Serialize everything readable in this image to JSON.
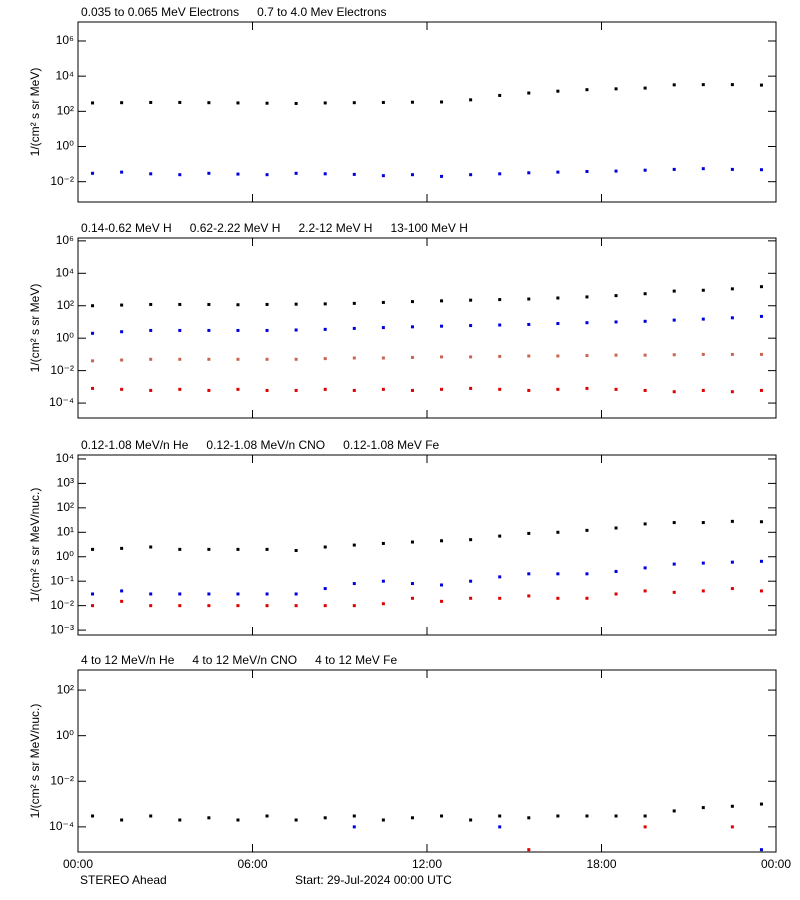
{
  "chart_data": [
    {
      "type": "scatter",
      "ylabel": "1/(cm² s sr MeV)",
      "log": true,
      "xlim": [
        0,
        24
      ],
      "xticks": [
        0,
        6,
        12,
        18,
        24
      ],
      "ylim": [
        0.0007,
        12000000
      ],
      "yticks": [
        {
          "value": 0.01,
          "label": "10⁻²"
        },
        {
          "value": 1,
          "label": "10⁰"
        },
        {
          "value": 100,
          "label": "10²"
        },
        {
          "value": 10000,
          "label": "10⁴"
        },
        {
          "value": 1000000,
          "label": "10⁶"
        }
      ],
      "x": [
        0.5,
        1.5,
        2.5,
        3.5,
        4.5,
        5.5,
        6.5,
        7.5,
        8.5,
        9.5,
        10.5,
        11.5,
        12.5,
        13.5,
        14.5,
        15.5,
        16.5,
        17.5,
        18.5,
        19.5,
        20.5,
        21.5,
        22.5,
        23.5
      ],
      "series": [
        {
          "name": "0.035 to 0.065 MeV Electrons",
          "color": "#000000",
          "values": [
            300,
            310,
            320,
            320,
            310,
            300,
            290,
            280,
            300,
            310,
            320,
            330,
            340,
            450,
            800,
            1100,
            1400,
            1700,
            1900,
            2100,
            3200,
            3300,
            3300,
            3100
          ]
        },
        {
          "name": "0.7 to 4.0 Mev Electrons",
          "color": "#0000dd",
          "values": [
            0.03,
            0.035,
            0.028,
            0.025,
            0.03,
            0.027,
            0.025,
            0.03,
            0.028,
            0.026,
            0.022,
            0.025,
            0.02,
            0.025,
            0.028,
            0.032,
            0.035,
            0.038,
            0.04,
            0.045,
            0.05,
            0.055,
            0.05,
            0.048
          ]
        }
      ]
    },
    {
      "type": "scatter",
      "ylabel": "1/(cm² s sr MeV)",
      "log": true,
      "xlim": [
        0,
        24
      ],
      "xticks": [
        0,
        6,
        12,
        18,
        24
      ],
      "ylim": [
        1.2e-05,
        1500000
      ],
      "yticks": [
        {
          "value": 0.0001,
          "label": "10⁻⁴"
        },
        {
          "value": 0.01,
          "label": "10⁻²"
        },
        {
          "value": 1,
          "label": "10⁰"
        },
        {
          "value": 100,
          "label": "10²"
        },
        {
          "value": 10000,
          "label": "10⁴"
        },
        {
          "value": 1000000,
          "label": "10⁶"
        }
      ],
      "x": [
        0.5,
        1.5,
        2.5,
        3.5,
        4.5,
        5.5,
        6.5,
        7.5,
        8.5,
        9.5,
        10.5,
        11.5,
        12.5,
        13.5,
        14.5,
        15.5,
        16.5,
        17.5,
        18.5,
        19.5,
        20.5,
        21.5,
        22.5,
        23.5
      ],
      "series": [
        {
          "name": "0.14-0.62 MeV H",
          "color": "#000000",
          "values": [
            100,
            110,
            120,
            120,
            120,
            115,
            120,
            125,
            130,
            140,
            160,
            180,
            200,
            220,
            240,
            260,
            300,
            350,
            420,
            550,
            800,
            900,
            1100,
            1500
          ]
        },
        {
          "name": "0.62-2.22 MeV H",
          "color": "#0000dd",
          "values": [
            2,
            2.5,
            3,
            3,
            3,
            3,
            3,
            3.2,
            3.5,
            4,
            4.5,
            5,
            5.5,
            6,
            6.5,
            7,
            8,
            9,
            10,
            11,
            13,
            15,
            18,
            22
          ]
        },
        {
          "name": "2.2-12 MeV H",
          "color": "#c86450",
          "values": [
            0.04,
            0.045,
            0.05,
            0.05,
            0.05,
            0.05,
            0.05,
            0.05,
            0.055,
            0.06,
            0.06,
            0.065,
            0.07,
            0.07,
            0.075,
            0.08,
            0.08,
            0.085,
            0.09,
            0.09,
            0.095,
            0.1,
            0.1,
            0.1
          ]
        },
        {
          "name": "13-100 MeV H",
          "color": "#e00000",
          "values": [
            0.0008,
            0.0007,
            0.0006,
            0.0007,
            0.0006,
            0.0007,
            0.0006,
            0.0006,
            0.0007,
            0.0006,
            0.0007,
            0.0006,
            0.0007,
            0.0008,
            0.0007,
            0.0006,
            0.0007,
            0.0008,
            0.0007,
            0.0006,
            0.0005,
            0.0006,
            0.0005,
            0.0006
          ]
        }
      ]
    },
    {
      "type": "scatter",
      "ylabel": "1/(cm² s sr MeV/nuc.)",
      "log": true,
      "xlim": [
        0,
        24
      ],
      "xticks": [
        0,
        6,
        12,
        18,
        24
      ],
      "ylim": [
        0.00063,
        14500
      ],
      "yticks": [
        {
          "value": 0.001,
          "label": "10⁻³"
        },
        {
          "value": 0.01,
          "label": "10⁻²"
        },
        {
          "value": 0.1,
          "label": "10⁻¹"
        },
        {
          "value": 1,
          "label": "10⁰"
        },
        {
          "value": 10,
          "label": "10¹"
        },
        {
          "value": 100,
          "label": "10²"
        },
        {
          "value": 1000,
          "label": "10³"
        },
        {
          "value": 10000,
          "label": "10⁴"
        }
      ],
      "x": [
        0.5,
        1.5,
        2.5,
        3.5,
        4.5,
        5.5,
        6.5,
        7.5,
        8.5,
        9.5,
        10.5,
        11.5,
        12.5,
        13.5,
        14.5,
        15.5,
        16.5,
        17.5,
        18.5,
        19.5,
        20.5,
        21.5,
        22.5,
        23.5
      ],
      "series": [
        {
          "name": "0.12-1.08 MeV/n He",
          "color": "#000000",
          "values": [
            2,
            2.2,
            2.5,
            2,
            2,
            2,
            2,
            1.8,
            2.5,
            3,
            3.5,
            4,
            4.5,
            5,
            7,
            9,
            10,
            12,
            15,
            22,
            25,
            25,
            28,
            27
          ]
        },
        {
          "name": "0.12-1.08 MeV/n CNO",
          "color": "#0000dd",
          "values": [
            0.03,
            0.04,
            0.03,
            0.03,
            0.03,
            0.03,
            0.03,
            0.03,
            0.05,
            0.08,
            0.1,
            0.08,
            0.07,
            0.1,
            0.15,
            0.2,
            0.2,
            0.2,
            0.25,
            0.35,
            0.5,
            0.55,
            0.6,
            0.65
          ]
        },
        {
          "name": "0.12-1.08 MeV Fe",
          "color": "#e00000",
          "values": [
            0.01,
            0.015,
            0.01,
            0.01,
            0.01,
            0.01,
            0.01,
            0.01,
            0.01,
            0.01,
            0.012,
            0.02,
            0.015,
            0.02,
            0.02,
            0.025,
            0.02,
            0.02,
            0.03,
            0.04,
            0.035,
            0.04,
            0.05,
            0.04
          ]
        }
      ]
    },
    {
      "type": "scatter",
      "ylabel": "1/(cm² s sr MeV/nuc.)",
      "log": true,
      "xlim": [
        0,
        24
      ],
      "xticks": [
        {
          "value": 0,
          "label": "00:00"
        },
        {
          "value": 6,
          "label": "06:00"
        },
        {
          "value": 12,
          "label": "12:00"
        },
        {
          "value": 18,
          "label": "18:00"
        },
        {
          "value": 24,
          "label": "00:00"
        }
      ],
      "ylim": [
        7.9e-06,
        760
      ],
      "yticks": [
        {
          "value": 0.0001,
          "label": "10⁻⁴"
        },
        {
          "value": 0.01,
          "label": "10⁻²"
        },
        {
          "value": 1,
          "label": "10⁰"
        },
        {
          "value": 100,
          "label": "10²"
        }
      ],
      "x": [
        0.5,
        1.5,
        2.5,
        3.5,
        4.5,
        5.5,
        6.5,
        7.5,
        8.5,
        9.5,
        10.5,
        11.5,
        12.5,
        13.5,
        14.5,
        15.5,
        16.5,
        17.5,
        18.5,
        19.5,
        20.5,
        21.5,
        22.5,
        23.5
      ],
      "series": [
        {
          "name": "4 to 12 MeV/n He",
          "color": "#000000",
          "values": [
            0.0003,
            0.0002,
            0.0003,
            0.0002,
            0.00025,
            0.0002,
            0.0003,
            0.0002,
            0.00025,
            0.0003,
            0.0002,
            0.00025,
            0.0003,
            0.0002,
            0.0003,
            0.00025,
            0.0003,
            0.0003,
            0.0003,
            0.0003,
            0.0005,
            0.0007,
            0.0008,
            0.001
          ]
        },
        {
          "name": "4 to 12 MeV/n CNO",
          "color": "#0000dd",
          "values": [
            null,
            null,
            null,
            null,
            null,
            null,
            null,
            null,
            null,
            0.0001,
            null,
            null,
            null,
            null,
            0.0001,
            null,
            null,
            null,
            null,
            null,
            null,
            null,
            null,
            1e-05
          ]
        },
        {
          "name": "4 to 12 MeV Fe",
          "color": "#e00000",
          "values": [
            null,
            null,
            null,
            null,
            null,
            null,
            null,
            null,
            null,
            null,
            null,
            null,
            null,
            null,
            null,
            1e-05,
            null,
            null,
            null,
            0.0001,
            null,
            null,
            0.0001,
            null
          ]
        }
      ]
    }
  ],
  "footer": {
    "left": "STEREO Ahead",
    "start": "Start: 29-Jul-2024 00:00 UTC"
  }
}
